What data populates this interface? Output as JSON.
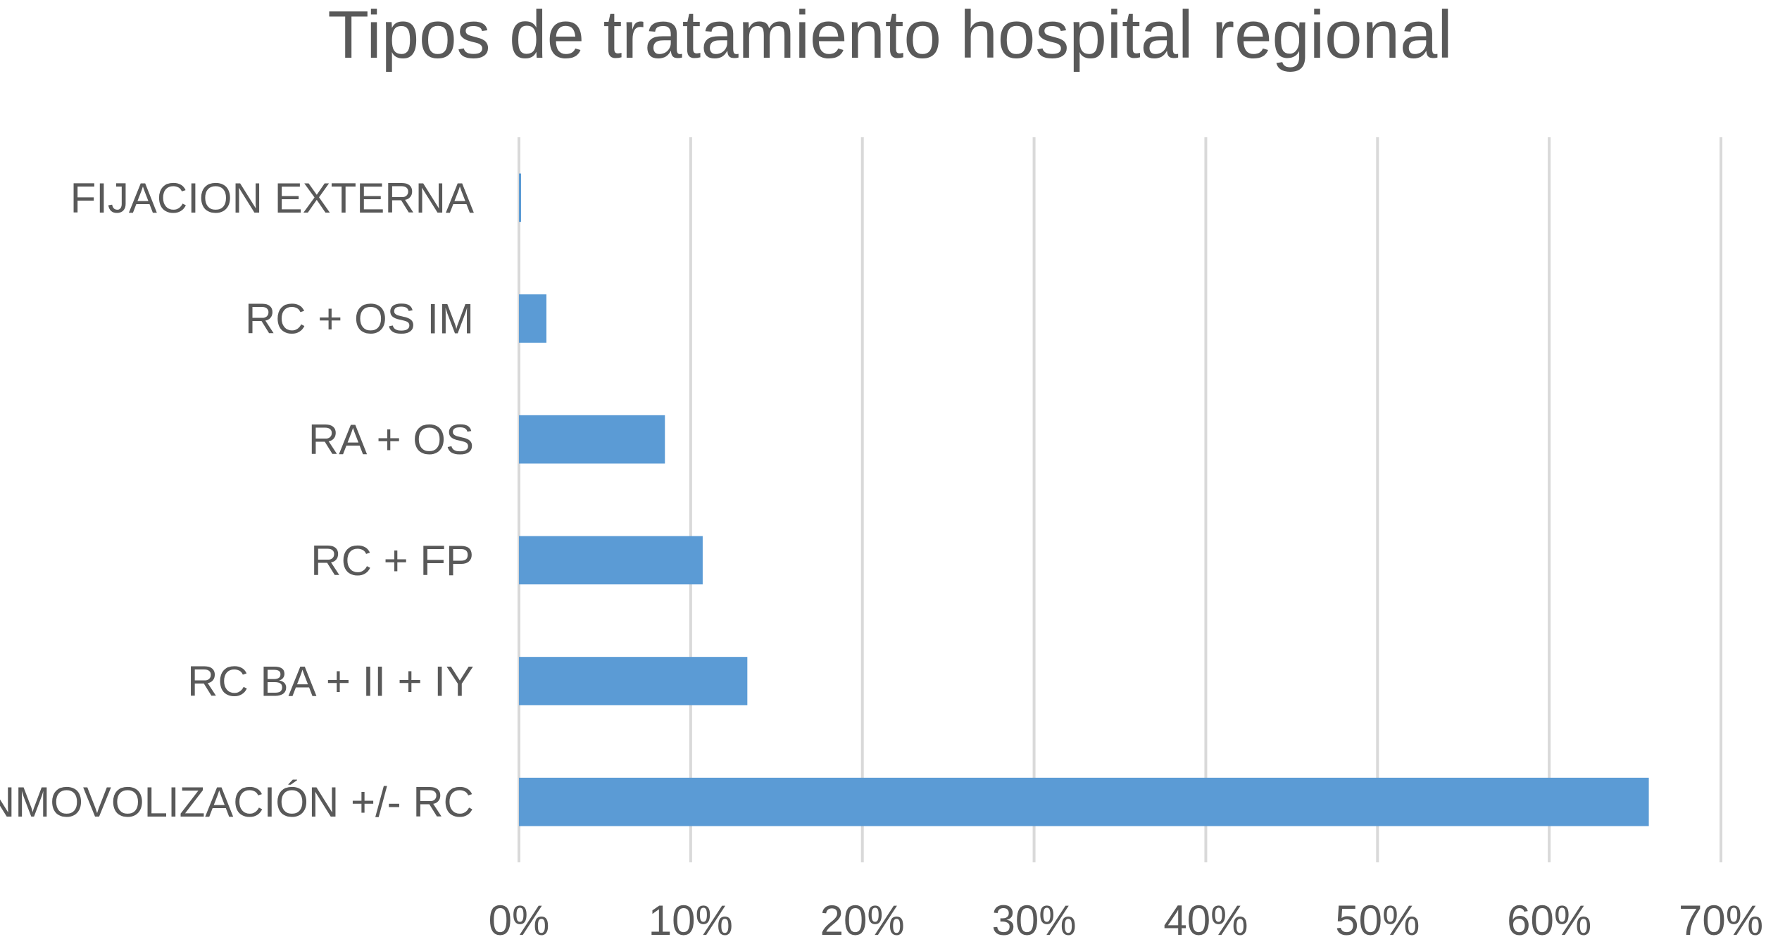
{
  "chart_data": {
    "type": "bar",
    "orientation": "horizontal",
    "title": "Tipos de tratamiento hospital regional",
    "categories": [
      "FIJACION EXTERNA",
      "RC + OS IM",
      "RA + OS",
      "RC + FP",
      "RC BA + II + IY",
      "INMOVOLIZACIÓN +/- RC"
    ],
    "values": [
      0.1,
      1.6,
      8.5,
      10.7,
      13.3,
      65.8
    ],
    "xlim": [
      0,
      70
    ],
    "xticks": [
      0,
      10,
      20,
      30,
      40,
      50,
      60,
      70
    ],
    "xtick_labels": [
      "0%",
      "10%",
      "20%",
      "30%",
      "40%",
      "50%",
      "60%",
      "70%"
    ],
    "xlabel": "",
    "ylabel": "",
    "grid": "vertical",
    "legend": "none",
    "bar_color": "#5B9BD5"
  }
}
